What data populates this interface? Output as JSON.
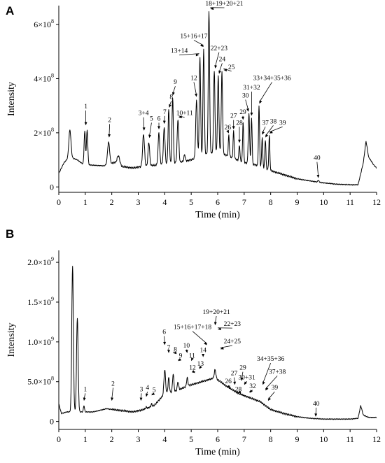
{
  "chart_data": [
    {
      "panel": "A",
      "type": "line",
      "xlabel": "Time (min)",
      "ylabel": "Intensity",
      "xlim": [
        0,
        12
      ],
      "ylim": [
        -0.2,
        6.7
      ],
      "x_ticks": [
        "0",
        "1",
        "2",
        "3",
        "4",
        "5",
        "6",
        "7",
        "8",
        "9",
        "10",
        "11",
        "12"
      ],
      "y_ticks": [
        {
          "value": 0,
          "label": "0",
          "base": "",
          "exp": ""
        },
        {
          "value": 2,
          "label": "",
          "base": "2×10",
          "exp": "8"
        },
        {
          "value": 4,
          "label": "",
          "base": "4×10",
          "exp": "8"
        },
        {
          "value": 6,
          "label": "",
          "base": "6×10",
          "exp": "8"
        }
      ],
      "baseline": [
        [
          0,
          0.5
        ],
        [
          0.2,
          0.9
        ],
        [
          0.4,
          1.1
        ],
        [
          0.7,
          1.0
        ],
        [
          0.9,
          0.85
        ],
        [
          1.3,
          0.8
        ],
        [
          1.7,
          0.78
        ],
        [
          2.1,
          0.9
        ],
        [
          2.4,
          0.75
        ],
        [
          2.8,
          0.7
        ],
        [
          3.1,
          0.75
        ],
        [
          3.6,
          0.8
        ],
        [
          4.0,
          0.85
        ],
        [
          4.5,
          0.9
        ],
        [
          5.0,
          1.0
        ],
        [
          5.5,
          1.2
        ],
        [
          6.0,
          1.3
        ],
        [
          6.5,
          1.1
        ],
        [
          7.0,
          0.9
        ],
        [
          7.5,
          0.8
        ],
        [
          8.0,
          0.6
        ],
        [
          8.5,
          0.45
        ],
        [
          9.0,
          0.3
        ],
        [
          9.5,
          0.22
        ],
        [
          10.0,
          0.15
        ],
        [
          10.5,
          0.1
        ],
        [
          11.0,
          0.08
        ],
        [
          11.3,
          0.08
        ],
        [
          11.5,
          0.9
        ],
        [
          11.6,
          1.7
        ],
        [
          11.7,
          1.1
        ],
        [
          11.9,
          0.8
        ],
        [
          12.0,
          0.7
        ]
      ],
      "peaks": [
        {
          "t": 0.42,
          "h": 2.1,
          "w": 0.04
        },
        {
          "t": 0.98,
          "h": 2.05,
          "w": 0.025
        },
        {
          "t": 1.07,
          "h": 2.1,
          "w": 0.025
        },
        {
          "t": 1.88,
          "h": 1.65,
          "w": 0.04
        },
        {
          "t": 2.25,
          "h": 1.15,
          "w": 0.05
        },
        {
          "t": 3.2,
          "h": 1.95,
          "w": 0.035
        },
        {
          "t": 3.4,
          "h": 1.65,
          "w": 0.03
        },
        {
          "t": 3.78,
          "h": 2.0,
          "w": 0.03
        },
        {
          "t": 3.98,
          "h": 2.2,
          "w": 0.03
        },
        {
          "t": 4.15,
          "h": 2.85,
          "w": 0.025
        },
        {
          "t": 4.3,
          "h": 3.3,
          "w": 0.025
        },
        {
          "t": 4.5,
          "h": 2.5,
          "w": 0.03
        },
        {
          "t": 4.75,
          "h": 1.2,
          "w": 0.025
        },
        {
          "t": 5.2,
          "h": 3.2,
          "w": 0.03
        },
        {
          "t": 5.33,
          "h": 4.8,
          "w": 0.025
        },
        {
          "t": 5.47,
          "h": 5.1,
          "w": 0.025
        },
        {
          "t": 5.67,
          "h": 6.5,
          "w": 0.025
        },
        {
          "t": 5.87,
          "h": 4.3,
          "w": 0.025
        },
        {
          "t": 6.02,
          "h": 4.1,
          "w": 0.025
        },
        {
          "t": 6.16,
          "h": 4.25,
          "w": 0.025
        },
        {
          "t": 6.42,
          "h": 1.9,
          "w": 0.02
        },
        {
          "t": 6.6,
          "h": 2.05,
          "w": 0.02
        },
        {
          "t": 6.82,
          "h": 1.55,
          "w": 0.02
        },
        {
          "t": 6.96,
          "h": 2.4,
          "w": 0.02
        },
        {
          "t": 7.18,
          "h": 2.7,
          "w": 0.025
        },
        {
          "t": 7.28,
          "h": 2.55,
          "w": 0.02
        },
        {
          "t": 7.56,
          "h": 3.0,
          "w": 0.02
        },
        {
          "t": 7.68,
          "h": 1.85,
          "w": 0.02
        },
        {
          "t": 7.8,
          "h": 1.75,
          "w": 0.02
        },
        {
          "t": 7.95,
          "h": 1.9,
          "w": 0.02
        },
        {
          "t": 9.8,
          "h": 0.25,
          "w": 0.02
        }
      ],
      "annotations": [
        {
          "text": "1",
          "x": 1.02,
          "y": 2.9,
          "tx": 1.02,
          "ty": 2.25
        },
        {
          "text": "2",
          "x": 1.92,
          "y": 2.4,
          "tx": 1.9,
          "ty": 1.8
        },
        {
          "text": "3+4",
          "x": 3.2,
          "y": 2.65,
          "tx": 3.22,
          "ty": 2.05
        },
        {
          "text": "5",
          "x": 3.5,
          "y": 2.45,
          "tx": 3.42,
          "ty": 1.78
        },
        {
          "text": "6",
          "x": 3.78,
          "y": 2.45,
          "tx": 3.78,
          "ty": 2.1
        },
        {
          "text": "7",
          "x": 4.0,
          "y": 2.7,
          "tx": 3.98,
          "ty": 2.3
        },
        {
          "text": "8",
          "x": 4.25,
          "y": 3.25,
          "tx": 4.17,
          "ty": 2.9
        },
        {
          "text": "9",
          "x": 4.4,
          "y": 3.8,
          "tx": 4.3,
          "ty": 3.35
        },
        {
          "text": "10+11",
          "x": 4.75,
          "y": 2.65,
          "tx": 4.52,
          "ty": 2.55
        },
        {
          "text": "12",
          "x": 5.1,
          "y": 3.95,
          "tx": 5.2,
          "ty": 3.3
        },
        {
          "text": "13+14",
          "x": 4.55,
          "y": 4.95,
          "tx": 5.3,
          "ty": 4.85
        },
        {
          "text": "15+16+17",
          "x": 5.1,
          "y": 5.5,
          "tx": 5.47,
          "ty": 5.15
        },
        {
          "text": "18+19+20+21",
          "x": 6.25,
          "y": 6.7,
          "tx": 5.72,
          "ty": 6.55
        },
        {
          "text": "22+23",
          "x": 6.05,
          "y": 5.05,
          "tx": 5.9,
          "ty": 4.35
        },
        {
          "text": "24",
          "x": 6.17,
          "y": 4.65,
          "tx": 6.05,
          "ty": 4.15
        },
        {
          "text": "25",
          "x": 6.52,
          "y": 4.35,
          "tx": 6.22,
          "ty": 4.3
        },
        {
          "text": "26",
          "x": 6.38,
          "y": 2.12,
          "tx": 6.42,
          "ty": 1.95
        },
        {
          "text": "27",
          "x": 6.6,
          "y": 2.55,
          "tx": 6.6,
          "ty": 2.1
        },
        {
          "text": "28",
          "x": 6.82,
          "y": 2.3,
          "tx": 6.82,
          "ty": 1.6
        },
        {
          "text": "29",
          "x": 6.95,
          "y": 2.7,
          "tx": 6.96,
          "ty": 2.45
        },
        {
          "text": "30",
          "x": 7.05,
          "y": 3.3,
          "tx": 7.16,
          "ty": 2.75
        },
        {
          "text": "31+32",
          "x": 7.28,
          "y": 3.6,
          "tx": 7.28,
          "ty": 2.6
        },
        {
          "text": "33+34+35+36",
          "x": 8.05,
          "y": 3.95,
          "tx": 7.57,
          "ty": 3.05
        },
        {
          "text": "37",
          "x": 7.8,
          "y": 2.3,
          "tx": 7.68,
          "ty": 1.9
        },
        {
          "text": "38",
          "x": 8.1,
          "y": 2.35,
          "tx": 7.8,
          "ty": 1.8
        },
        {
          "text": "39",
          "x": 8.45,
          "y": 2.3,
          "tx": 7.95,
          "ty": 1.95
        },
        {
          "text": "40",
          "x": 9.75,
          "y": 1.0,
          "tx": 9.8,
          "ty": 0.3
        }
      ]
    },
    {
      "panel": "B",
      "type": "line",
      "xlabel": "Time (min)",
      "ylabel": "Intensity",
      "xlim": [
        0,
        12
      ],
      "ylim": [
        -0.1,
        2.15
      ],
      "x_ticks": [
        "0",
        "1",
        "2",
        "3",
        "4",
        "5",
        "6",
        "7",
        "8",
        "9",
        "10",
        "11",
        "12"
      ],
      "y_ticks": [
        {
          "value": 0,
          "label": "0",
          "base": "",
          "exp": ""
        },
        {
          "value": 0.5,
          "label": "",
          "base": "5.0×10",
          "exp": "8"
        },
        {
          "value": 1.0,
          "label": "",
          "base": "1.0×10",
          "exp": "9"
        },
        {
          "value": 1.5,
          "label": "",
          "base": "1.5×10",
          "exp": "9"
        },
        {
          "value": 2.0,
          "label": "",
          "base": "2.0×10",
          "exp": "9"
        }
      ],
      "baseline": [
        [
          0,
          0.22
        ],
        [
          0.1,
          0.1
        ],
        [
          0.3,
          0.12
        ],
        [
          0.9,
          0.12
        ],
        [
          1.3,
          0.12
        ],
        [
          1.8,
          0.16
        ],
        [
          2.3,
          0.14
        ],
        [
          2.8,
          0.12
        ],
        [
          3.2,
          0.15
        ],
        [
          3.6,
          0.2
        ],
        [
          4.0,
          0.35
        ],
        [
          4.4,
          0.38
        ],
        [
          4.9,
          0.45
        ],
        [
          5.4,
          0.5
        ],
        [
          5.9,
          0.55
        ],
        [
          6.3,
          0.45
        ],
        [
          6.8,
          0.35
        ],
        [
          7.2,
          0.3
        ],
        [
          7.6,
          0.25
        ],
        [
          8.0,
          0.15
        ],
        [
          8.5,
          0.1
        ],
        [
          9.0,
          0.06
        ],
        [
          9.5,
          0.04
        ],
        [
          10.0,
          0.03
        ],
        [
          10.5,
          0.03
        ],
        [
          11.0,
          0.03
        ],
        [
          11.3,
          0.04
        ],
        [
          11.4,
          0.2
        ],
        [
          11.5,
          0.08
        ],
        [
          11.7,
          0.05
        ],
        [
          12.0,
          0.05
        ]
      ],
      "peaks": [
        {
          "t": 0.52,
          "h": 1.95,
          "w": 0.03
        },
        {
          "t": 0.7,
          "h": 1.3,
          "w": 0.03
        },
        {
          "t": 0.95,
          "h": 0.2,
          "w": 0.02
        },
        {
          "t": 2.0,
          "h": 0.1,
          "w": 0.02
        },
        {
          "t": 3.1,
          "h": 0.12,
          "w": 0.02
        },
        {
          "t": 3.3,
          "h": 0.18,
          "w": 0.02
        },
        {
          "t": 3.5,
          "h": 0.22,
          "w": 0.02
        },
        {
          "t": 4.0,
          "h": 0.65,
          "w": 0.03
        },
        {
          "t": 4.15,
          "h": 0.55,
          "w": 0.025
        },
        {
          "t": 4.32,
          "h": 0.6,
          "w": 0.025
        },
        {
          "t": 4.5,
          "h": 0.5,
          "w": 0.025
        },
        {
          "t": 4.85,
          "h": 0.55,
          "w": 0.025
        },
        {
          "t": 5.0,
          "h": 0.45,
          "w": 0.025
        },
        {
          "t": 5.15,
          "h": 0.3,
          "w": 0.025
        },
        {
          "t": 5.3,
          "h": 0.35,
          "w": 0.02
        },
        {
          "t": 5.45,
          "h": 0.4,
          "w": 0.02
        },
        {
          "t": 5.55,
          "h": 0.5,
          "w": 0.02
        },
        {
          "t": 5.7,
          "h": 0.45,
          "w": 0.025
        },
        {
          "t": 5.9,
          "h": 0.65,
          "w": 0.03
        },
        {
          "t": 6.05,
          "h": 0.45,
          "w": 0.025
        },
        {
          "t": 6.2,
          "h": 0.35,
          "w": 0.025
        },
        {
          "t": 6.45,
          "h": 0.2,
          "w": 0.02
        },
        {
          "t": 6.65,
          "h": 0.22,
          "w": 0.02
        },
        {
          "t": 6.85,
          "h": 0.25,
          "w": 0.02
        },
        {
          "t": 7.0,
          "h": 0.3,
          "w": 0.02
        },
        {
          "t": 7.25,
          "h": 0.2,
          "w": 0.02
        },
        {
          "t": 7.75,
          "h": 0.2,
          "w": 0.02
        },
        {
          "t": 9.7,
          "h": 0.03,
          "w": 0.02
        }
      ],
      "annotations": [
        {
          "text": "1",
          "x": 1.0,
          "y": 0.38,
          "tx": 0.95,
          "ty": 0.25
        },
        {
          "text": "2",
          "x": 2.05,
          "y": 0.45,
          "tx": 2.0,
          "ty": 0.25
        },
        {
          "text": "3",
          "x": 3.12,
          "y": 0.38,
          "tx": 3.1,
          "ty": 0.25
        },
        {
          "text": "4",
          "x": 3.35,
          "y": 0.4,
          "tx": 3.3,
          "ty": 0.3
        },
        {
          "text": "5",
          "x": 3.6,
          "y": 0.37,
          "tx": 3.5,
          "ty": 0.32
        },
        {
          "text": "6",
          "x": 3.98,
          "y": 1.1,
          "tx": 4.0,
          "ty": 0.95
        },
        {
          "text": "7",
          "x": 4.15,
          "y": 0.9,
          "tx": 4.15,
          "ty": 0.85
        },
        {
          "text": "8",
          "x": 4.4,
          "y": 0.88,
          "tx": 4.32,
          "ty": 0.85
        },
        {
          "text": "9",
          "x": 4.6,
          "y": 0.8,
          "tx": 4.5,
          "ty": 0.75
        },
        {
          "text": "10",
          "x": 4.82,
          "y": 0.93,
          "tx": 4.85,
          "ty": 0.85
        },
        {
          "text": "11",
          "x": 5.03,
          "y": 0.8,
          "tx": 5.0,
          "ty": 0.75
        },
        {
          "text": "12",
          "x": 5.05,
          "y": 0.65,
          "tx": 5.15,
          "ty": 0.6
        },
        {
          "text": "13",
          "x": 5.35,
          "y": 0.7,
          "tx": 5.3,
          "ty": 0.65
        },
        {
          "text": "14",
          "x": 5.45,
          "y": 0.87,
          "tx": 5.45,
          "ty": 0.8
        },
        {
          "text": "15+16+17+18",
          "x": 5.05,
          "y": 1.16,
          "tx": 5.6,
          "ty": 0.95
        },
        {
          "text": "19+20+21",
          "x": 5.95,
          "y": 1.35,
          "tx": 5.9,
          "ty": 1.2
        },
        {
          "text": "22+23",
          "x": 6.55,
          "y": 1.2,
          "tx": 6.0,
          "ty": 1.15
        },
        {
          "text": "24+25",
          "x": 6.55,
          "y": 0.98,
          "tx": 6.1,
          "ty": 0.9
        },
        {
          "text": "26",
          "x": 6.4,
          "y": 0.48,
          "tx": 6.45,
          "ty": 0.4
        },
        {
          "text": "27",
          "x": 6.62,
          "y": 0.58,
          "tx": 6.65,
          "ty": 0.45
        },
        {
          "text": "28",
          "x": 6.78,
          "y": 0.38,
          "tx": 6.75,
          "ty": 0.35
        },
        {
          "text": "29",
          "x": 6.95,
          "y": 0.65,
          "tx": 6.9,
          "ty": 0.5
        },
        {
          "text": "30+31",
          "x": 7.1,
          "y": 0.53,
          "tx": 7.0,
          "ty": 0.45
        },
        {
          "text": "32",
          "x": 7.32,
          "y": 0.42,
          "tx": 7.2,
          "ty": 0.35
        },
        {
          "text": "34+35+36",
          "x": 8.0,
          "y": 0.76,
          "tx": 7.7,
          "ty": 0.45
        },
        {
          "text": "37+38",
          "x": 8.25,
          "y": 0.6,
          "tx": 7.8,
          "ty": 0.38
        },
        {
          "text": "39",
          "x": 8.15,
          "y": 0.4,
          "tx": 7.9,
          "ty": 0.25
        },
        {
          "text": "40",
          "x": 9.72,
          "y": 0.2,
          "tx": 9.7,
          "ty": 0.05
        }
      ]
    }
  ]
}
